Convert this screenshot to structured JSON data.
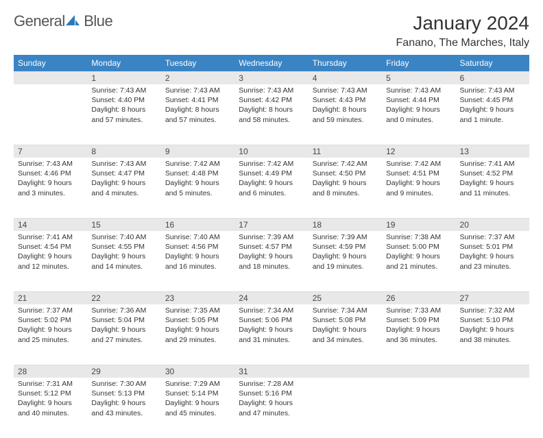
{
  "brand": {
    "part1": "General",
    "part2": "Blue"
  },
  "title": "January 2024",
  "subtitle": "Fanano, The Marches, Italy",
  "colors": {
    "header_bg": "#3b84c4",
    "header_fg": "#ffffff",
    "daynum_bg": "#e8e8e8",
    "brand_gray": "#555555",
    "brand_blue": "#2b7ab8"
  },
  "weekdays": [
    "Sunday",
    "Monday",
    "Tuesday",
    "Wednesday",
    "Thursday",
    "Friday",
    "Saturday"
  ],
  "weeks": [
    [
      null,
      {
        "n": "1",
        "sr": "Sunrise: 7:43 AM",
        "ss": "Sunset: 4:40 PM",
        "dl": "Daylight: 8 hours and 57 minutes."
      },
      {
        "n": "2",
        "sr": "Sunrise: 7:43 AM",
        "ss": "Sunset: 4:41 PM",
        "dl": "Daylight: 8 hours and 57 minutes."
      },
      {
        "n": "3",
        "sr": "Sunrise: 7:43 AM",
        "ss": "Sunset: 4:42 PM",
        "dl": "Daylight: 8 hours and 58 minutes."
      },
      {
        "n": "4",
        "sr": "Sunrise: 7:43 AM",
        "ss": "Sunset: 4:43 PM",
        "dl": "Daylight: 8 hours and 59 minutes."
      },
      {
        "n": "5",
        "sr": "Sunrise: 7:43 AM",
        "ss": "Sunset: 4:44 PM",
        "dl": "Daylight: 9 hours and 0 minutes."
      },
      {
        "n": "6",
        "sr": "Sunrise: 7:43 AM",
        "ss": "Sunset: 4:45 PM",
        "dl": "Daylight: 9 hours and 1 minute."
      }
    ],
    [
      {
        "n": "7",
        "sr": "Sunrise: 7:43 AM",
        "ss": "Sunset: 4:46 PM",
        "dl": "Daylight: 9 hours and 3 minutes."
      },
      {
        "n": "8",
        "sr": "Sunrise: 7:43 AM",
        "ss": "Sunset: 4:47 PM",
        "dl": "Daylight: 9 hours and 4 minutes."
      },
      {
        "n": "9",
        "sr": "Sunrise: 7:42 AM",
        "ss": "Sunset: 4:48 PM",
        "dl": "Daylight: 9 hours and 5 minutes."
      },
      {
        "n": "10",
        "sr": "Sunrise: 7:42 AM",
        "ss": "Sunset: 4:49 PM",
        "dl": "Daylight: 9 hours and 6 minutes."
      },
      {
        "n": "11",
        "sr": "Sunrise: 7:42 AM",
        "ss": "Sunset: 4:50 PM",
        "dl": "Daylight: 9 hours and 8 minutes."
      },
      {
        "n": "12",
        "sr": "Sunrise: 7:42 AM",
        "ss": "Sunset: 4:51 PM",
        "dl": "Daylight: 9 hours and 9 minutes."
      },
      {
        "n": "13",
        "sr": "Sunrise: 7:41 AM",
        "ss": "Sunset: 4:52 PM",
        "dl": "Daylight: 9 hours and 11 minutes."
      }
    ],
    [
      {
        "n": "14",
        "sr": "Sunrise: 7:41 AM",
        "ss": "Sunset: 4:54 PM",
        "dl": "Daylight: 9 hours and 12 minutes."
      },
      {
        "n": "15",
        "sr": "Sunrise: 7:40 AM",
        "ss": "Sunset: 4:55 PM",
        "dl": "Daylight: 9 hours and 14 minutes."
      },
      {
        "n": "16",
        "sr": "Sunrise: 7:40 AM",
        "ss": "Sunset: 4:56 PM",
        "dl": "Daylight: 9 hours and 16 minutes."
      },
      {
        "n": "17",
        "sr": "Sunrise: 7:39 AM",
        "ss": "Sunset: 4:57 PM",
        "dl": "Daylight: 9 hours and 18 minutes."
      },
      {
        "n": "18",
        "sr": "Sunrise: 7:39 AM",
        "ss": "Sunset: 4:59 PM",
        "dl": "Daylight: 9 hours and 19 minutes."
      },
      {
        "n": "19",
        "sr": "Sunrise: 7:38 AM",
        "ss": "Sunset: 5:00 PM",
        "dl": "Daylight: 9 hours and 21 minutes."
      },
      {
        "n": "20",
        "sr": "Sunrise: 7:37 AM",
        "ss": "Sunset: 5:01 PM",
        "dl": "Daylight: 9 hours and 23 minutes."
      }
    ],
    [
      {
        "n": "21",
        "sr": "Sunrise: 7:37 AM",
        "ss": "Sunset: 5:02 PM",
        "dl": "Daylight: 9 hours and 25 minutes."
      },
      {
        "n": "22",
        "sr": "Sunrise: 7:36 AM",
        "ss": "Sunset: 5:04 PM",
        "dl": "Daylight: 9 hours and 27 minutes."
      },
      {
        "n": "23",
        "sr": "Sunrise: 7:35 AM",
        "ss": "Sunset: 5:05 PM",
        "dl": "Daylight: 9 hours and 29 minutes."
      },
      {
        "n": "24",
        "sr": "Sunrise: 7:34 AM",
        "ss": "Sunset: 5:06 PM",
        "dl": "Daylight: 9 hours and 31 minutes."
      },
      {
        "n": "25",
        "sr": "Sunrise: 7:34 AM",
        "ss": "Sunset: 5:08 PM",
        "dl": "Daylight: 9 hours and 34 minutes."
      },
      {
        "n": "26",
        "sr": "Sunrise: 7:33 AM",
        "ss": "Sunset: 5:09 PM",
        "dl": "Daylight: 9 hours and 36 minutes."
      },
      {
        "n": "27",
        "sr": "Sunrise: 7:32 AM",
        "ss": "Sunset: 5:10 PM",
        "dl": "Daylight: 9 hours and 38 minutes."
      }
    ],
    [
      {
        "n": "28",
        "sr": "Sunrise: 7:31 AM",
        "ss": "Sunset: 5:12 PM",
        "dl": "Daylight: 9 hours and 40 minutes."
      },
      {
        "n": "29",
        "sr": "Sunrise: 7:30 AM",
        "ss": "Sunset: 5:13 PM",
        "dl": "Daylight: 9 hours and 43 minutes."
      },
      {
        "n": "30",
        "sr": "Sunrise: 7:29 AM",
        "ss": "Sunset: 5:14 PM",
        "dl": "Daylight: 9 hours and 45 minutes."
      },
      {
        "n": "31",
        "sr": "Sunrise: 7:28 AM",
        "ss": "Sunset: 5:16 PM",
        "dl": "Daylight: 9 hours and 47 minutes."
      },
      null,
      null,
      null
    ]
  ]
}
